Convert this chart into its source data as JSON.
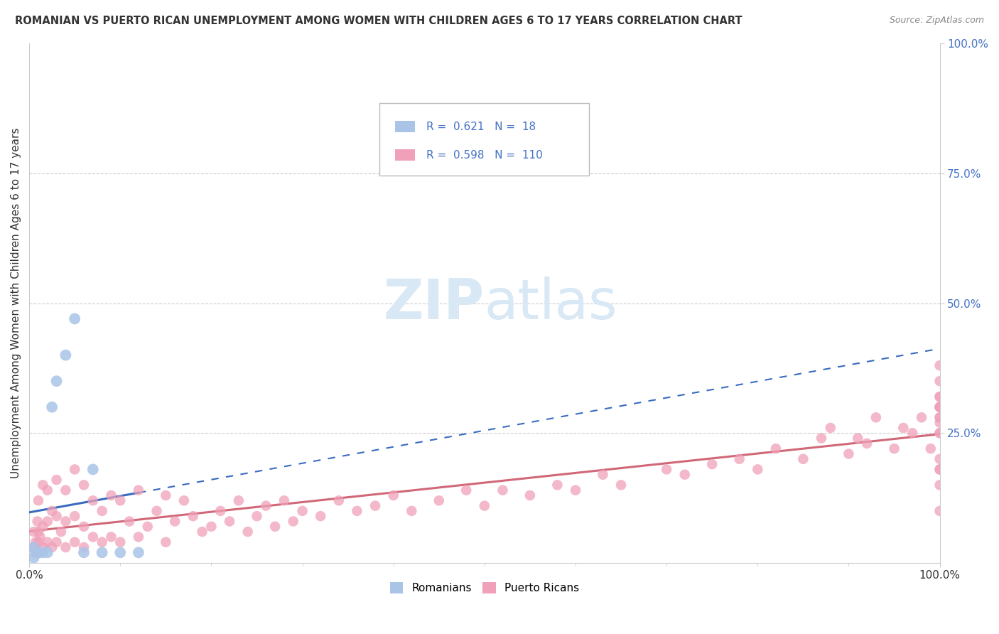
{
  "title": "ROMANIAN VS PUERTO RICAN UNEMPLOYMENT AMONG WOMEN WITH CHILDREN AGES 6 TO 17 YEARS CORRELATION CHART",
  "source": "Source: ZipAtlas.com",
  "ylabel": "Unemployment Among Women with Children Ages 6 to 17 years",
  "xlim": [
    0,
    1.0
  ],
  "ylim": [
    0,
    1.0
  ],
  "legend_r_romanian": "0.621",
  "legend_n_romanian": "18",
  "legend_r_puerto": "0.598",
  "legend_n_puerto": "110",
  "romanian_color": "#aac4e8",
  "puerto_color": "#f0a0b8",
  "romanian_line_color": "#3a6bbf",
  "puerto_line_color": "#d06878",
  "watermark_color": "#d8e8f5",
  "title_color": "#333333",
  "source_color": "#888888",
  "label_color": "#333333",
  "right_tick_color": "#4472c4",
  "grid_color": "#cccccc",
  "rom_x": [
    0.005,
    0.005,
    0.007,
    0.008,
    0.009,
    0.01,
    0.01,
    0.015,
    0.02,
    0.025,
    0.03,
    0.04,
    0.05,
    0.06,
    0.07,
    0.08,
    0.1,
    0.12
  ],
  "rom_y": [
    0.01,
    0.03,
    0.02,
    0.02,
    0.02,
    0.02,
    0.02,
    0.02,
    0.02,
    0.3,
    0.35,
    0.4,
    0.47,
    0.02,
    0.18,
    0.02,
    0.02,
    0.02
  ],
  "pur_x": [
    0.005,
    0.005,
    0.007,
    0.008,
    0.009,
    0.01,
    0.01,
    0.01,
    0.012,
    0.015,
    0.015,
    0.015,
    0.02,
    0.02,
    0.02,
    0.025,
    0.025,
    0.03,
    0.03,
    0.03,
    0.035,
    0.04,
    0.04,
    0.04,
    0.05,
    0.05,
    0.05,
    0.06,
    0.06,
    0.06,
    0.07,
    0.07,
    0.08,
    0.08,
    0.09,
    0.09,
    0.1,
    0.1,
    0.11,
    0.12,
    0.12,
    0.13,
    0.14,
    0.15,
    0.15,
    0.16,
    0.17,
    0.18,
    0.19,
    0.2,
    0.21,
    0.22,
    0.23,
    0.24,
    0.25,
    0.26,
    0.27,
    0.28,
    0.29,
    0.3,
    0.32,
    0.34,
    0.36,
    0.38,
    0.4,
    0.42,
    0.45,
    0.48,
    0.5,
    0.52,
    0.55,
    0.58,
    0.6,
    0.63,
    0.65,
    0.7,
    0.72,
    0.75,
    0.78,
    0.8,
    0.82,
    0.85,
    0.87,
    0.88,
    0.9,
    0.91,
    0.92,
    0.93,
    0.95,
    0.96,
    0.97,
    0.98,
    0.99,
    1.0,
    1.0,
    1.0,
    1.0,
    1.0,
    1.0,
    1.0,
    1.0,
    1.0,
    1.0,
    1.0,
    1.0,
    1.0,
    1.0,
    1.0,
    1.0,
    1.0
  ],
  "pur_y": [
    0.03,
    0.06,
    0.04,
    0.02,
    0.08,
    0.04,
    0.06,
    0.12,
    0.05,
    0.03,
    0.07,
    0.15,
    0.04,
    0.08,
    0.14,
    0.03,
    0.1,
    0.04,
    0.09,
    0.16,
    0.06,
    0.03,
    0.08,
    0.14,
    0.04,
    0.09,
    0.18,
    0.03,
    0.07,
    0.15,
    0.05,
    0.12,
    0.04,
    0.1,
    0.05,
    0.13,
    0.04,
    0.12,
    0.08,
    0.05,
    0.14,
    0.07,
    0.1,
    0.04,
    0.13,
    0.08,
    0.12,
    0.09,
    0.06,
    0.07,
    0.1,
    0.08,
    0.12,
    0.06,
    0.09,
    0.11,
    0.07,
    0.12,
    0.08,
    0.1,
    0.09,
    0.12,
    0.1,
    0.11,
    0.13,
    0.1,
    0.12,
    0.14,
    0.11,
    0.14,
    0.13,
    0.15,
    0.14,
    0.17,
    0.15,
    0.18,
    0.17,
    0.19,
    0.2,
    0.18,
    0.22,
    0.2,
    0.24,
    0.26,
    0.21,
    0.24,
    0.23,
    0.28,
    0.22,
    0.26,
    0.25,
    0.28,
    0.22,
    0.27,
    0.3,
    0.25,
    0.28,
    0.2,
    0.32,
    0.18,
    0.35,
    0.3,
    0.1,
    0.25,
    0.15,
    0.32,
    0.28,
    0.38,
    0.3,
    0.18
  ]
}
